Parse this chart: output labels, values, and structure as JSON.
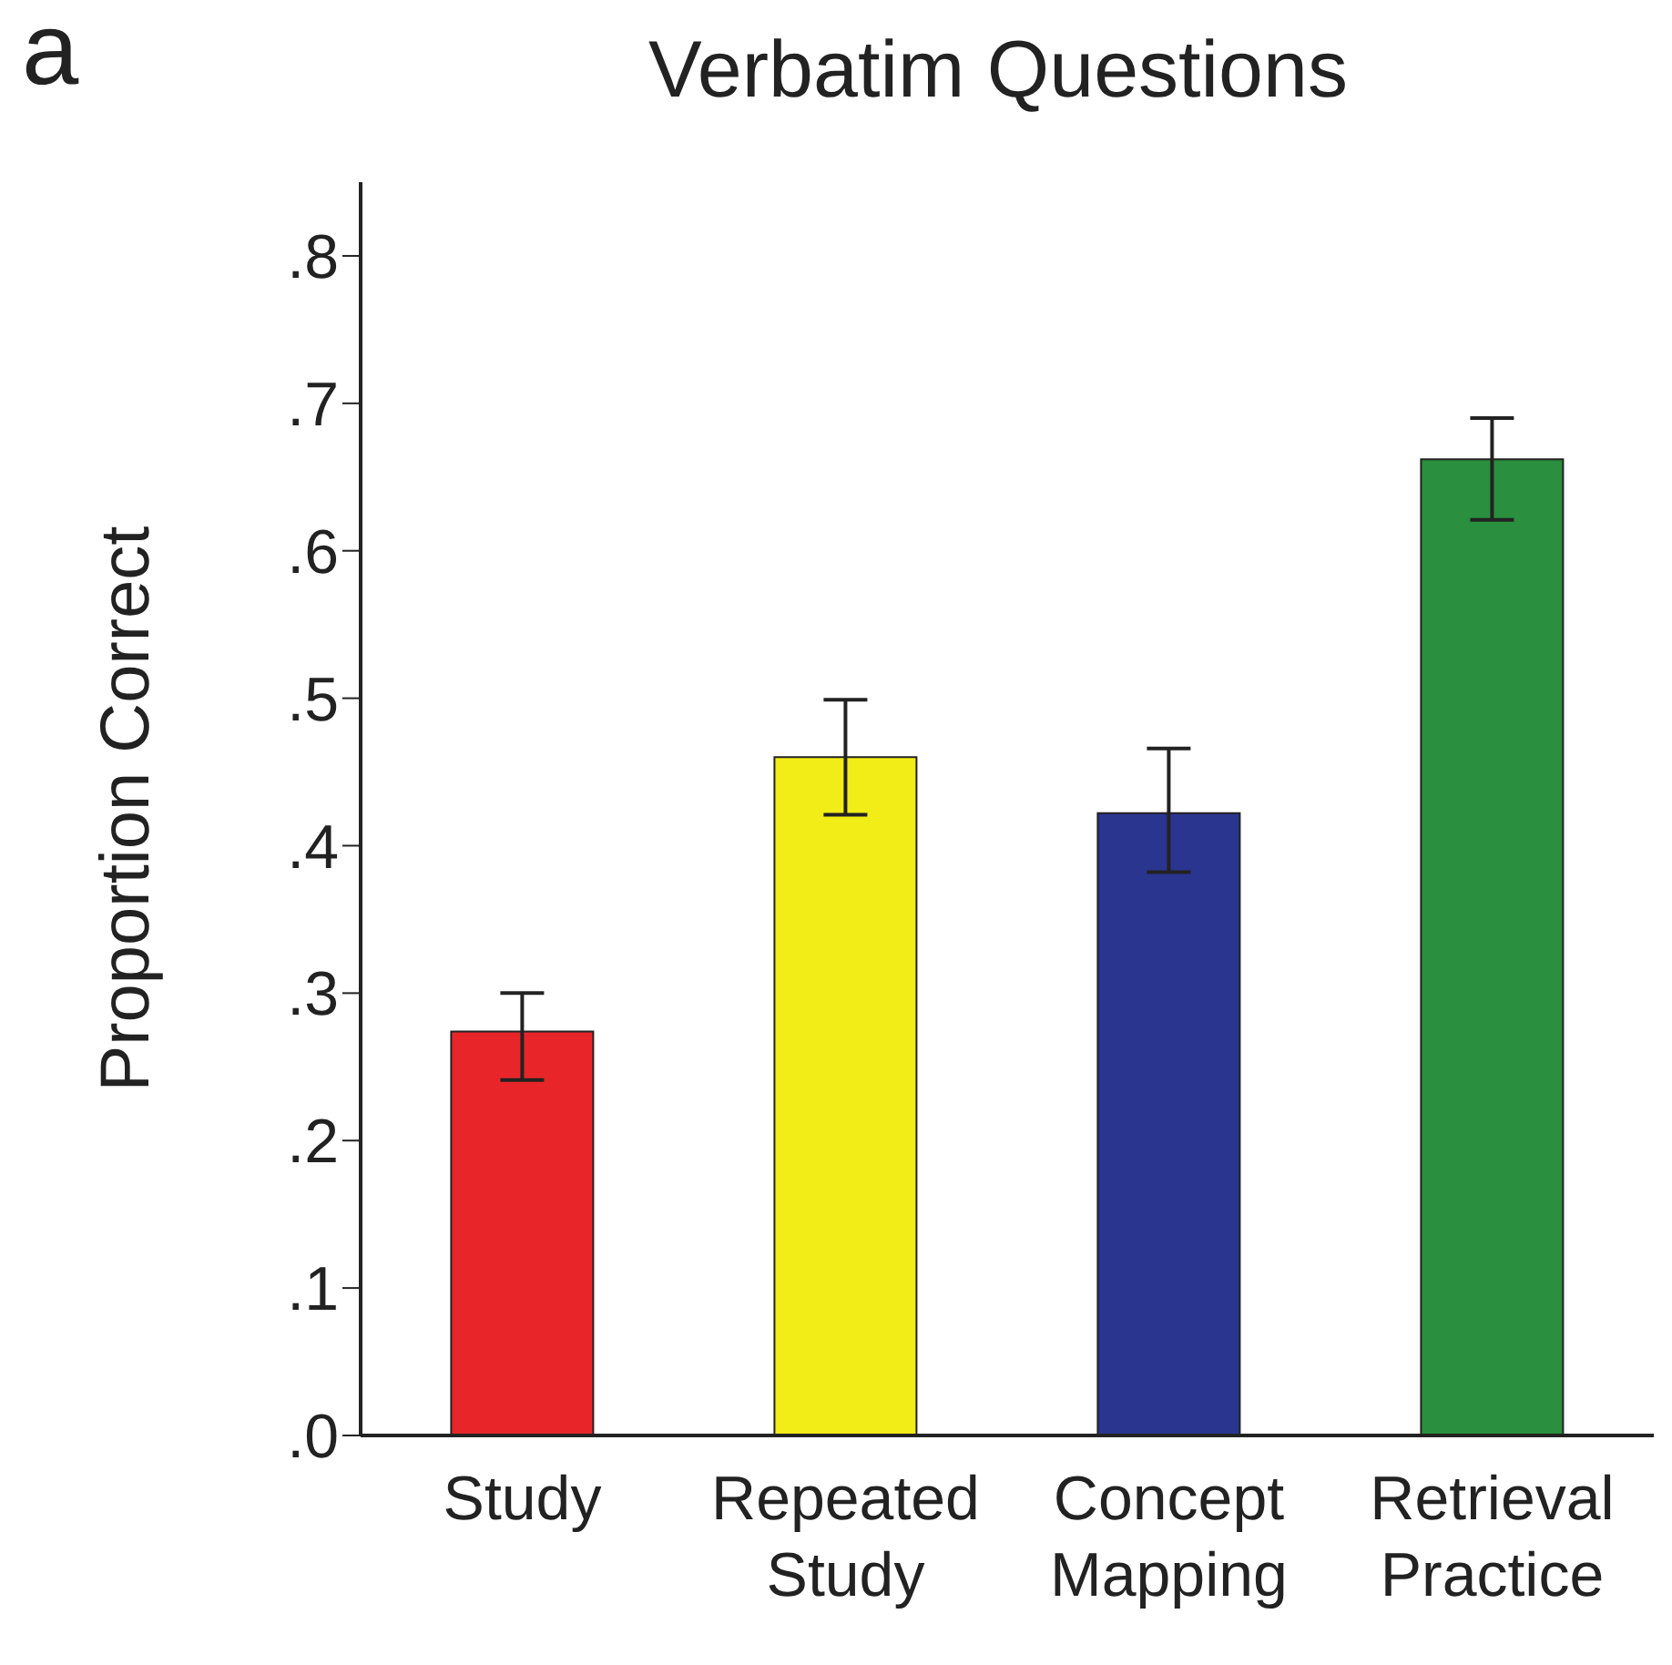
{
  "chart_data": {
    "type": "bar",
    "title": "Verbatim Questions",
    "ylabel": "Proportion Correct",
    "annotations": [
      "a"
    ],
    "categories": [
      "Study",
      "Repeated Study",
      "Concept Mapping",
      "Retrieval Practice"
    ],
    "values": [
      0.274,
      0.46,
      0.422,
      0.662
    ],
    "colors": [
      "#e8262a",
      "#f2ec17",
      "#2a3590",
      "#2a8f3e"
    ],
    "errors": [
      [
        0.241,
        0.3
      ],
      [
        0.421,
        0.499
      ],
      [
        0.382,
        0.466
      ],
      [
        0.621,
        0.69
      ]
    ],
    "ylim": [
      0,
      0.85
    ],
    "yticks": [
      {
        "value": 0,
        "label": ".0"
      },
      {
        "value": 0.1,
        "label": ".1"
      },
      {
        "value": 0.2,
        "label": ".2"
      },
      {
        "value": 0.3,
        "label": ".3"
      },
      {
        "value": 0.4,
        "label": ".4"
      },
      {
        "value": 0.5,
        "label": ".5"
      },
      {
        "value": 0.6,
        "label": ".6"
      },
      {
        "value": 0.7,
        "label": ".7"
      },
      {
        "value": 0.8,
        "label": ".8"
      }
    ],
    "grid": false,
    "legend": false
  }
}
